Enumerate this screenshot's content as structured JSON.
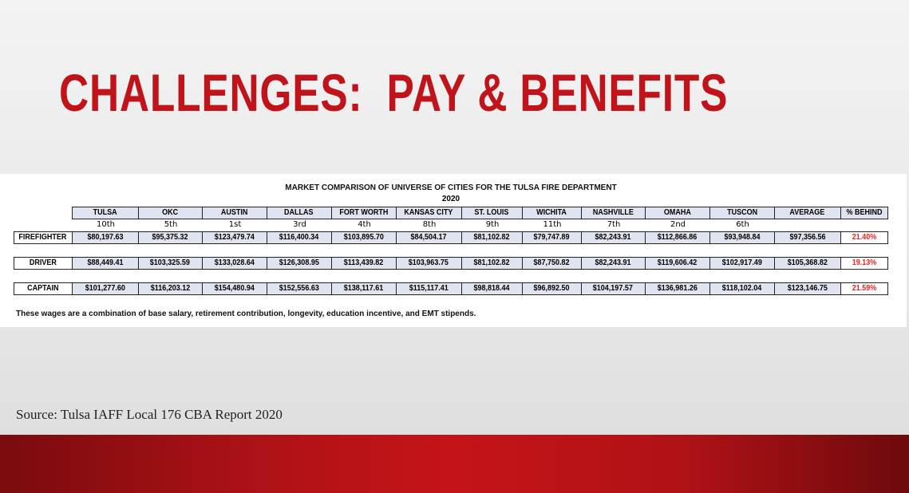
{
  "slide": {
    "title": "CHALLENGES:  PAY & BENEFITS",
    "source": "Source: Tulsa IAFF Local 176 CBA Report 2020"
  },
  "table": {
    "title": "MARKET COMPARISON OF UNIVERSE OF CITIES FOR THE TULSA FIRE DEPARTMENT",
    "year": "2020",
    "headers": [
      "TULSA",
      "OKC",
      "AUSTIN",
      "DALLAS",
      "FORT WORTH",
      "KANSAS CITY",
      "ST. LOUIS",
      "WICHITA",
      "NASHVILLE",
      "OMAHA",
      "TUSCON",
      "AVERAGE",
      "% BEHIND"
    ],
    "ranks": [
      "10th",
      "5th",
      "1st",
      "3rd",
      "4th",
      "8th",
      "9th",
      "11th",
      "7th",
      "2nd",
      "6th"
    ],
    "rows": [
      {
        "label": "FIREFIGHTER",
        "values": [
          "$80,197.63",
          "$95,375.32",
          "$123,479.74",
          "$116,400.34",
          "$103,895.70",
          "$84,504.17",
          "$81,102.82",
          "$79,747.89",
          "$82,243.91",
          "$112,866.86",
          "$93,948.84",
          "$97,356.56",
          "21.40%"
        ]
      },
      {
        "label": "DRIVER",
        "values": [
          "$88,449.41",
          "$103,325.59",
          "$133,028.64",
          "$126,308.95",
          "$113,439.82",
          "$103,963.75",
          "$81,102.82",
          "$87,750.82",
          "$82,243.91",
          "$119,606.42",
          "$102,917.49",
          "$105,368.82",
          "19.13%"
        ]
      },
      {
        "label": "CAPTAIN",
        "values": [
          "$101,277.60",
          "$116,203.12",
          "$154,480.94",
          "$152,556.63",
          "$138,117.61",
          "$115,117.41",
          "$98,818.44",
          "$96,892.50",
          "$104,197.57",
          "$136,981.26",
          "$118,102.04",
          "$123,146.75",
          "21.59%"
        ]
      }
    ],
    "note": "These wages are a combination of base salary, retirement contribution, longevity, education incentive, and EMT stipends.",
    "colors": {
      "header_fill": "#dfe4f0",
      "behind": "#e8231f"
    }
  }
}
